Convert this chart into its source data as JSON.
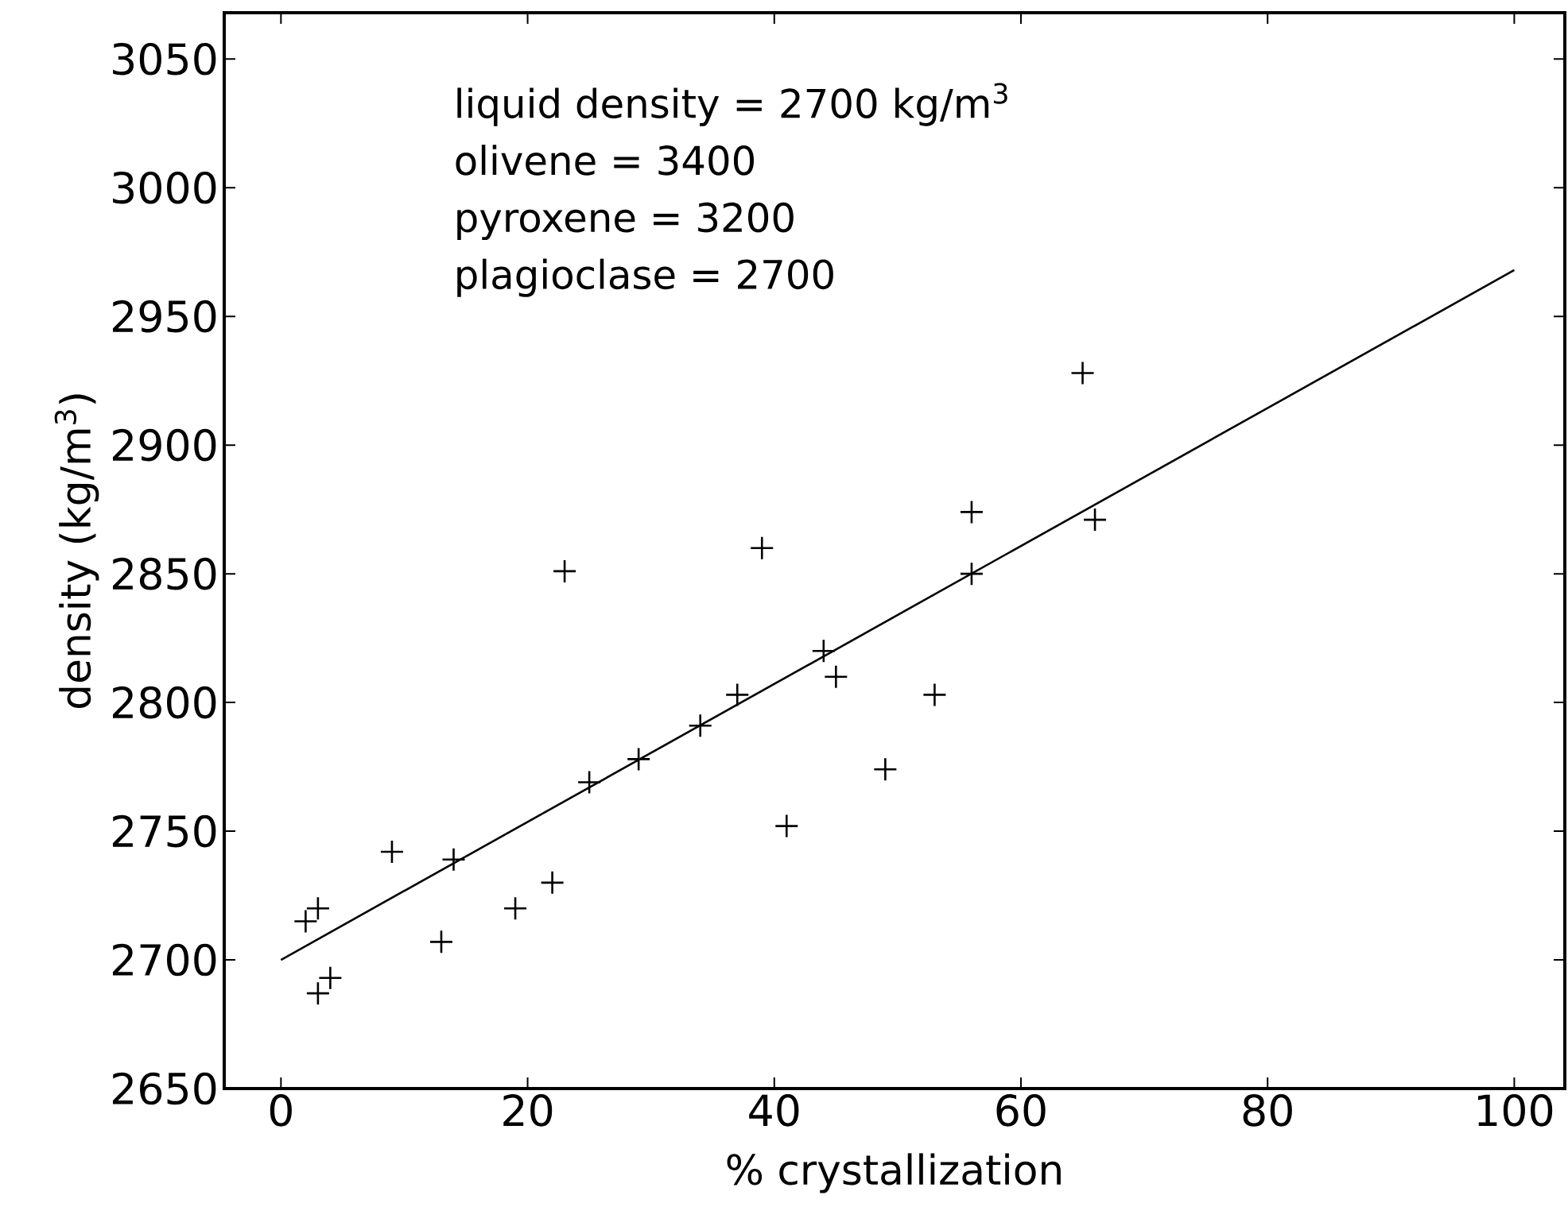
{
  "chart_data": {
    "type": "scatter",
    "xlabel": "% crystallization",
    "ylabel": "density (kg/m$^{3}$)",
    "xlim": [
      -4.6,
      104.1
    ],
    "ylim": [
      2650,
      3068
    ],
    "xticks": [
      0,
      20,
      40,
      60,
      80,
      100
    ],
    "yticks": [
      2650,
      2700,
      2750,
      2800,
      2850,
      2900,
      2950,
      3000,
      3050
    ],
    "grid": false,
    "marker": "cross",
    "annotations": [
      "liquid density = 2700 kg/m$^{3}$",
      "olivene = 3400",
      "pyroxene = 3200",
      "plagioclase = 2700"
    ],
    "series": [
      {
        "color": "#000000",
        "x": [
          2,
          3,
          3,
          4,
          9,
          13,
          14,
          19,
          22,
          23,
          25,
          29,
          34,
          37,
          39,
          41,
          44,
          45,
          49,
          53,
          56,
          56,
          65,
          66
        ],
        "values": [
          2715,
          2720,
          2687,
          2693,
          2742,
          2707,
          2739,
          2720,
          2730,
          2851,
          2769,
          2778,
          2791,
          2803,
          2860,
          2752,
          2820,
          2810,
          2774,
          2803,
          2874,
          2850,
          2928,
          2871
        ]
      },
      {
        "type": "line",
        "color": "#000000",
        "marker": "none",
        "x": [
          0,
          100
        ],
        "values": [
          2700,
          2968
        ]
      }
    ]
  }
}
